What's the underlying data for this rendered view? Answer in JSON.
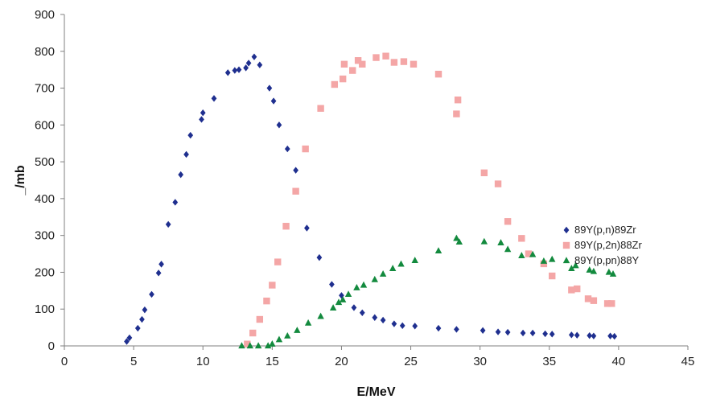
{
  "chart_data": {
    "type": "scatter",
    "xlabel": "E/MeV",
    "ylabel": "_/mb",
    "xlim": [
      0,
      45
    ],
    "ylim": [
      0,
      900
    ],
    "x_ticks": [
      0,
      5,
      10,
      15,
      20,
      25,
      30,
      35,
      40,
      45
    ],
    "y_ticks": [
      0,
      100,
      200,
      300,
      400,
      500,
      600,
      700,
      800,
      900
    ],
    "grid": false,
    "legend_position": "right",
    "series": [
      {
        "name": "89Y(p,n)89Zr",
        "marker": "diamond",
        "color": "#1f2f8f",
        "points": [
          [
            4.5,
            12
          ],
          [
            4.7,
            22
          ],
          [
            5.3,
            48
          ],
          [
            5.6,
            72
          ],
          [
            5.8,
            98
          ],
          [
            6.3,
            140
          ],
          [
            6.8,
            198
          ],
          [
            7.0,
            222
          ],
          [
            7.5,
            330
          ],
          [
            8.0,
            390
          ],
          [
            8.4,
            465
          ],
          [
            8.8,
            520
          ],
          [
            9.1,
            572
          ],
          [
            9.9,
            615
          ],
          [
            10.0,
            633
          ],
          [
            10.8,
            672
          ],
          [
            11.8,
            742
          ],
          [
            12.3,
            748
          ],
          [
            12.6,
            750
          ],
          [
            13.1,
            755
          ],
          [
            13.3,
            768
          ],
          [
            13.7,
            785
          ],
          [
            14.1,
            763
          ],
          [
            14.8,
            700
          ],
          [
            15.1,
            665
          ],
          [
            15.5,
            600
          ],
          [
            16.1,
            535
          ],
          [
            16.7,
            477
          ],
          [
            17.5,
            320
          ],
          [
            18.4,
            240
          ],
          [
            19.3,
            167
          ],
          [
            20.0,
            137
          ],
          [
            20.9,
            104
          ],
          [
            21.5,
            90
          ],
          [
            22.4,
            77
          ],
          [
            23.0,
            70
          ],
          [
            23.8,
            60
          ],
          [
            24.4,
            55
          ],
          [
            25.3,
            54
          ],
          [
            27.0,
            48
          ],
          [
            28.3,
            45
          ],
          [
            30.2,
            42
          ],
          [
            31.3,
            38
          ],
          [
            32.0,
            37
          ],
          [
            33.1,
            35
          ],
          [
            33.8,
            35
          ],
          [
            34.7,
            33
          ],
          [
            35.2,
            32
          ],
          [
            36.6,
            30
          ],
          [
            37.0,
            29
          ],
          [
            37.9,
            28
          ],
          [
            38.2,
            27
          ],
          [
            39.4,
            27
          ],
          [
            39.7,
            26
          ]
        ]
      },
      {
        "name": "89Y(p,2n)88Zr",
        "marker": "square",
        "color": "#f4a6a6",
        "points": [
          [
            13.2,
            5
          ],
          [
            13.6,
            35
          ],
          [
            14.1,
            72
          ],
          [
            14.6,
            122
          ],
          [
            15.0,
            165
          ],
          [
            15.4,
            228
          ],
          [
            16.0,
            325
          ],
          [
            16.7,
            420
          ],
          [
            17.4,
            535
          ],
          [
            18.5,
            645
          ],
          [
            19.5,
            710
          ],
          [
            20.1,
            725
          ],
          [
            20.2,
            765
          ],
          [
            20.8,
            748
          ],
          [
            21.2,
            775
          ],
          [
            21.5,
            765
          ],
          [
            22.5,
            783
          ],
          [
            23.2,
            787
          ],
          [
            23.8,
            770
          ],
          [
            24.5,
            772
          ],
          [
            25.2,
            765
          ],
          [
            27.0,
            738
          ],
          [
            28.4,
            668
          ],
          [
            28.3,
            630
          ],
          [
            30.3,
            470
          ],
          [
            31.3,
            440
          ],
          [
            32.0,
            338
          ],
          [
            33.0,
            292
          ],
          [
            33.5,
            250
          ],
          [
            34.6,
            223
          ],
          [
            35.2,
            190
          ],
          [
            36.6,
            152
          ],
          [
            37.0,
            155
          ],
          [
            37.8,
            128
          ],
          [
            38.2,
            123
          ],
          [
            39.2,
            115
          ],
          [
            39.5,
            115
          ]
        ]
      },
      {
        "name": "89Y(p,pn)88Y",
        "marker": "triangle",
        "color": "#138a3e",
        "points": [
          [
            12.8,
            0
          ],
          [
            13.4,
            0
          ],
          [
            14.0,
            0
          ],
          [
            14.7,
            0
          ],
          [
            15.0,
            5
          ],
          [
            15.5,
            17
          ],
          [
            16.1,
            27
          ],
          [
            16.8,
            42
          ],
          [
            17.6,
            62
          ],
          [
            18.5,
            80
          ],
          [
            19.4,
            103
          ],
          [
            19.8,
            118
          ],
          [
            20.1,
            125
          ],
          [
            20.5,
            140
          ],
          [
            21.1,
            158
          ],
          [
            21.6,
            165
          ],
          [
            22.4,
            180
          ],
          [
            23.0,
            195
          ],
          [
            23.7,
            210
          ],
          [
            24.3,
            222
          ],
          [
            25.3,
            232
          ],
          [
            27.0,
            258
          ],
          [
            28.3,
            292
          ],
          [
            28.5,
            282
          ],
          [
            30.3,
            283
          ],
          [
            31.5,
            280
          ],
          [
            32.0,
            262
          ],
          [
            33.0,
            245
          ],
          [
            33.8,
            248
          ],
          [
            34.6,
            230
          ],
          [
            35.2,
            235
          ],
          [
            36.6,
            210
          ],
          [
            36.9,
            218
          ],
          [
            37.9,
            206
          ],
          [
            38.2,
            202
          ],
          [
            39.3,
            200
          ],
          [
            39.6,
            195
          ]
        ]
      }
    ]
  }
}
